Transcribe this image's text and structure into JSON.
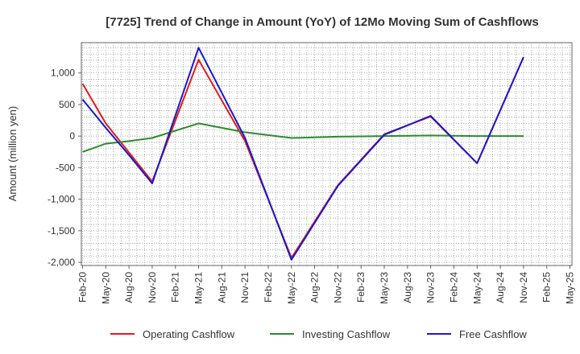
{
  "chart_data": {
    "type": "line",
    "title": "[7725]  Trend of Change in Amount (YoY) of 12Mo Moving Sum of Cashflows",
    "xlabel": "",
    "ylabel": "Amount (million yen)",
    "ylim": [
      -2050,
      1480
    ],
    "y_ticks": [
      1000,
      500,
      0,
      -500,
      -1000,
      -1500,
      -2000
    ],
    "y_tick_labels": [
      "1,000",
      "500",
      "0",
      "-500",
      "-1,000",
      "-1,500",
      "-2,000"
    ],
    "categories": [
      "Feb-20",
      "May-20",
      "Aug-20",
      "Nov-20",
      "Feb-21",
      "May-21",
      "Aug-21",
      "Nov-21",
      "Feb-22",
      "May-22",
      "Aug-22",
      "Nov-22",
      "Feb-23",
      "May-23",
      "Aug-23",
      "Nov-23",
      "Feb-24",
      "May-24",
      "Aug-24",
      "Nov-24",
      "Feb-25",
      "May-25"
    ],
    "grid": true,
    "legend_position": "bottom",
    "series": [
      {
        "name": "Operating Cashflow",
        "color": "#e31a1c",
        "values": [
          830,
          200,
          -260,
          -720,
          null,
          1210,
          null,
          -80,
          null,
          -1930,
          null,
          -780,
          null,
          30,
          null,
          310,
          null,
          -430,
          null,
          1250,
          null,
          null
        ]
      },
      {
        "name": "Investing Cashflow",
        "color": "#2e8b2e",
        "values": [
          -250,
          -120,
          -80,
          -30,
          null,
          200,
          null,
          60,
          null,
          -30,
          null,
          -10,
          null,
          0,
          null,
          10,
          null,
          0,
          null,
          0,
          null,
          null
        ]
      },
      {
        "name": "Free Cashflow",
        "color": "#1a1acd",
        "values": [
          580,
          130,
          -300,
          -750,
          null,
          1400,
          null,
          -30,
          null,
          -1960,
          null,
          -790,
          null,
          20,
          null,
          320,
          null,
          -430,
          null,
          1250,
          null,
          null
        ]
      }
    ]
  }
}
